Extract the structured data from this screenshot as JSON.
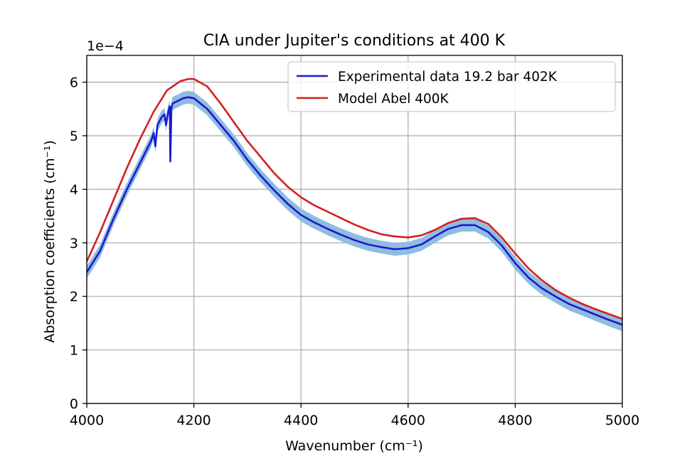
{
  "chart_data": {
    "type": "line",
    "title": "CIA under Jupiter's conditions at 400 K",
    "xlabel": "Wavenumber (cm⁻¹)",
    "ylabel": "Absorption coefficients (cm⁻¹)",
    "offset_text": "1e−4",
    "xlim": [
      4000,
      5000
    ],
    "ylim": [
      0,
      6.5
    ],
    "xticks": [
      4000,
      4200,
      4400,
      4600,
      4800,
      5000
    ],
    "xtick_labels": [
      "4000",
      "4200",
      "4400",
      "4600",
      "4800",
      "5000"
    ],
    "yticks": [
      0,
      1,
      2,
      3,
      4,
      5,
      6
    ],
    "ytick_labels": [
      "0",
      "1",
      "2",
      "3",
      "4",
      "5",
      "6"
    ],
    "grid": true,
    "legend_position": "top-right",
    "series": [
      {
        "name": "Experimental data 19.2 bar 402K",
        "color": "#1a1ad0",
        "band_color": "#8fbde0",
        "band_halfwidth": 0.12,
        "x": [
          4000,
          4025,
          4050,
          4075,
          4100,
          4120,
          4125,
          4128,
          4132,
          4140,
          4145,
          4148,
          4152,
          4155,
          4156,
          4158,
          4160,
          4170,
          4180,
          4190,
          4200,
          4225,
          4250,
          4275,
          4300,
          4325,
          4350,
          4375,
          4400,
          4425,
          4450,
          4475,
          4500,
          4525,
          4550,
          4575,
          4600,
          4625,
          4650,
          4675,
          4700,
          4725,
          4750,
          4775,
          4800,
          4825,
          4850,
          4875,
          4900,
          4925,
          4950,
          4975,
          5000
        ],
        "y": [
          2.45,
          2.85,
          3.45,
          4.0,
          4.5,
          4.9,
          5.05,
          4.8,
          5.2,
          5.35,
          5.4,
          5.2,
          5.45,
          5.55,
          4.52,
          5.5,
          5.6,
          5.65,
          5.7,
          5.72,
          5.7,
          5.5,
          5.2,
          4.9,
          4.55,
          4.25,
          3.98,
          3.73,
          3.52,
          3.38,
          3.26,
          3.15,
          3.05,
          2.97,
          2.92,
          2.88,
          2.9,
          2.97,
          3.12,
          3.26,
          3.33,
          3.33,
          3.2,
          2.95,
          2.62,
          2.35,
          2.15,
          2.0,
          1.86,
          1.76,
          1.66,
          1.56,
          1.47
        ]
      },
      {
        "name": "Model Abel 400K",
        "color": "#d42020",
        "x": [
          4000,
          4025,
          4050,
          4075,
          4100,
          4125,
          4150,
          4175,
          4190,
          4200,
          4225,
          4250,
          4275,
          4300,
          4325,
          4350,
          4375,
          4400,
          4425,
          4450,
          4475,
          4500,
          4525,
          4550,
          4575,
          4600,
          4625,
          4650,
          4675,
          4700,
          4725,
          4750,
          4775,
          4800,
          4825,
          4850,
          4875,
          4900,
          4925,
          4950,
          4975,
          5000
        ],
        "y": [
          2.65,
          3.2,
          3.8,
          4.4,
          4.95,
          5.45,
          5.85,
          6.02,
          6.06,
          6.06,
          5.92,
          5.6,
          5.25,
          4.9,
          4.6,
          4.3,
          4.05,
          3.85,
          3.7,
          3.58,
          3.46,
          3.34,
          3.24,
          3.16,
          3.12,
          3.1,
          3.14,
          3.24,
          3.37,
          3.45,
          3.46,
          3.35,
          3.1,
          2.8,
          2.52,
          2.3,
          2.12,
          1.98,
          1.86,
          1.76,
          1.67,
          1.58
        ]
      }
    ]
  }
}
